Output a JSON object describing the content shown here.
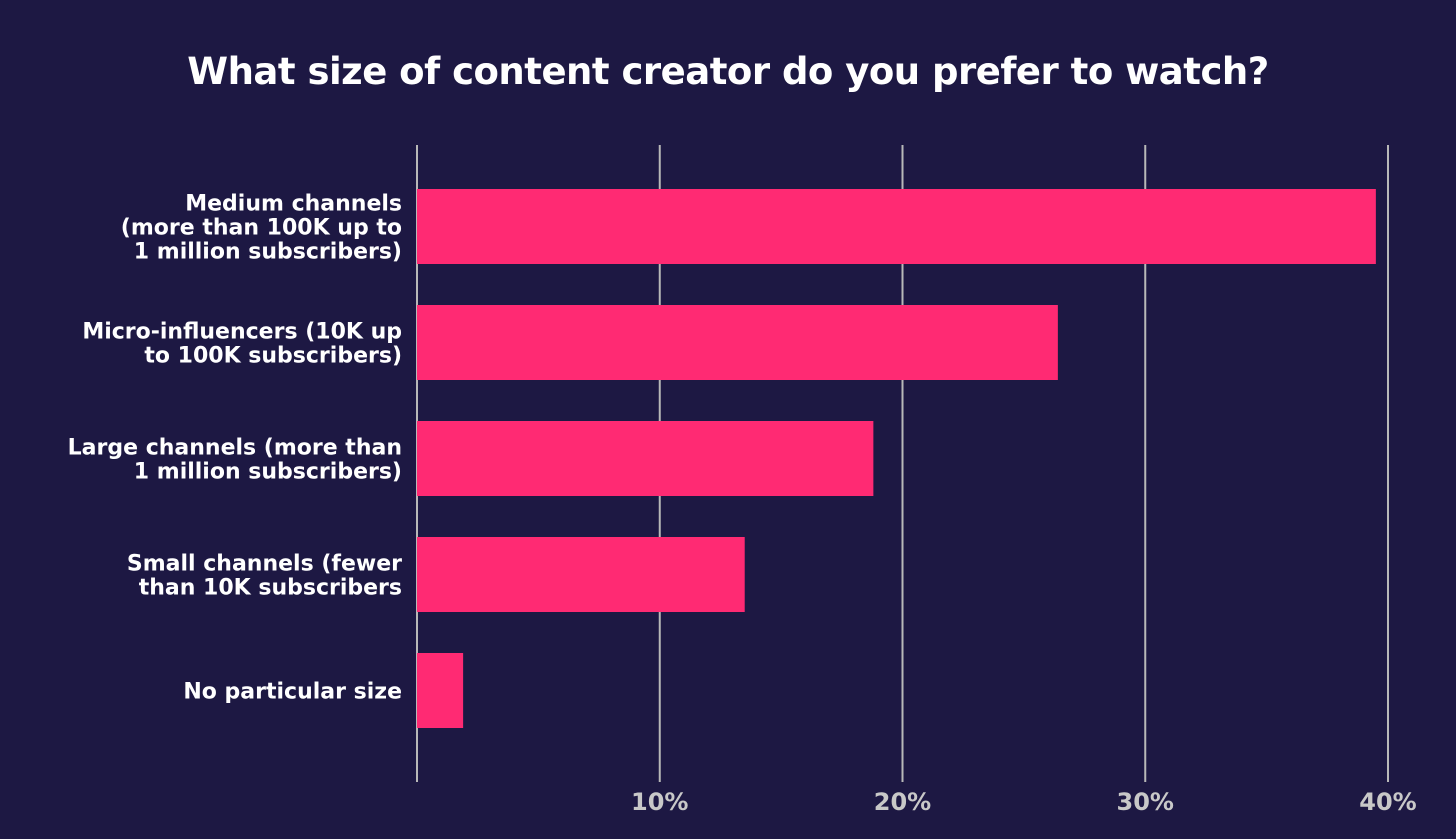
{
  "colors": {
    "background": "#1d1843",
    "bar": "#ff2a73",
    "gridline": "#b8b8b8",
    "label": "#ffffff",
    "tick": "#c8c8c8"
  },
  "chart_data": {
    "type": "bar",
    "orientation": "horizontal",
    "title": "What size of content creator do you prefer to watch?",
    "xlabel": "",
    "ylabel": "",
    "categories": [
      "Medium channels (more than 100K up to 1 million subscribers)",
      "Micro-influencers (10K up to 100K subscribers)",
      "Large channels (more than 1 million subscribers)",
      "Small channels (fewer than 10K subscribers",
      "No particular size"
    ],
    "category_lines": [
      [
        "Medium channels",
        "(more than 100K up to",
        "1 million subscribers)"
      ],
      [
        "Micro-influencers (10K up",
        "to 100K subscribers)"
      ],
      [
        "Large channels (more than",
        "1 million subscribers)"
      ],
      [
        "Small channels (fewer",
        "than 10K subscribers"
      ],
      [
        "No particular size"
      ]
    ],
    "values": [
      39.5,
      26.4,
      18.8,
      13.5,
      1.9
    ],
    "xlim": [
      0,
      40
    ],
    "xticks": [
      10,
      20,
      30,
      40
    ],
    "xtick_labels": [
      "10%",
      "20%",
      "30%",
      "40%"
    ],
    "grid": true,
    "legend": "none"
  }
}
